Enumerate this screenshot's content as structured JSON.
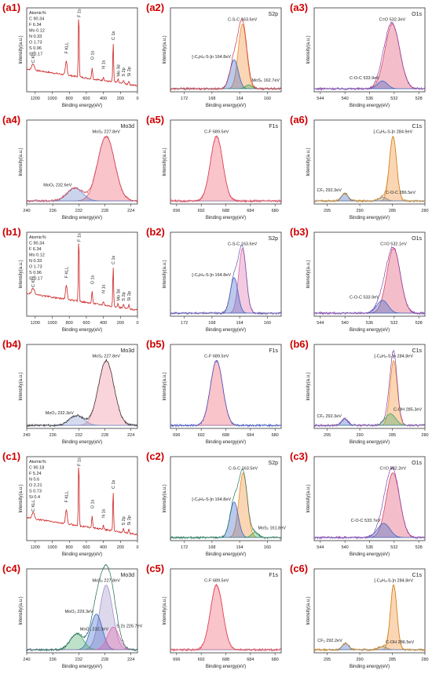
{
  "figure": {
    "panels": [
      {
        "id": "a1",
        "label": "(a1)",
        "tag": "",
        "kind": "survey",
        "atomic": [
          "Atomic%",
          "C 90.34",
          "F 6.34",
          "Mo 0.12",
          "N 0.33",
          "O 1.73",
          "S 0.96",
          "Si 0.17"
        ],
        "peaks": [
          {
            "x": 689,
            "label": "F 1s"
          },
          {
            "x": 285,
            "label": "C 1s"
          },
          {
            "x": 532,
            "label": "O 1s"
          },
          {
            "x": 400,
            "label": "N 1s"
          },
          {
            "x": 835,
            "label": "F KLL"
          },
          {
            "x": 1225,
            "label": "C KLL"
          },
          {
            "x": 228,
            "label": "Mo 3d"
          },
          {
            "x": 164,
            "label": "S 2p"
          },
          {
            "x": 102,
            "label": "Si 2p"
          }
        ],
        "xlim": [
          1300,
          0
        ],
        "xticks": [
          1200,
          1000,
          800,
          600,
          400,
          200,
          0
        ],
        "color": "#cc2222"
      },
      {
        "id": "a2",
        "label": "(a2)",
        "tag": "S2p",
        "kind": "hr",
        "xlim": [
          174,
          158
        ],
        "xticks": [
          172,
          168,
          164,
          160
        ],
        "components": [
          {
            "name": "C-S-C 163.6eV",
            "center": 163.6,
            "height": 1.0,
            "width": 0.6,
            "color": "#f08a2a"
          },
          {
            "name": "[-C6H4-S-]n 164.8eV",
            "center": 164.8,
            "height": 0.45,
            "width": 0.6,
            "color": "#3a66c8"
          },
          {
            "name": "MoS2 162.7eV",
            "center": 162.7,
            "height": 0.06,
            "width": 0.5,
            "color": "#33aa55"
          }
        ],
        "envelope": "#ddaa22",
        "data_color": "#cc3344"
      },
      {
        "id": "a3",
        "label": "(a3)",
        "tag": "O1s",
        "kind": "hr",
        "xlim": [
          545,
          527
        ],
        "xticks": [
          544,
          540,
          536,
          532,
          528
        ],
        "components": [
          {
            "name": "C=O 532.3eV",
            "center": 532.3,
            "height": 1.0,
            "width": 1.2,
            "color": "#dd4466"
          },
          {
            "name": "C-O-C 533.9eV",
            "center": 533.9,
            "height": 0.12,
            "width": 0.8,
            "color": "#3a66c8"
          }
        ],
        "envelope": "#aa55aa",
        "data_color": "#8844aa"
      },
      {
        "id": "a4",
        "label": "(a4)",
        "tag": "Mo3d",
        "kind": "hr",
        "xlim": [
          240,
          223
        ],
        "xticks": [
          240,
          236,
          232,
          228,
          224
        ],
        "components": [
          {
            "name": "MoS2 227.8eV",
            "center": 227.8,
            "height": 1.0,
            "width": 1.3,
            "color": "#ee5566"
          },
          {
            "name": "MoO3 232.6eV",
            "center": 232.6,
            "height": 0.2,
            "width": 1.2,
            "color": "#6688cc"
          }
        ],
        "envelope": "#cc4455",
        "data_color": "#cc4455"
      },
      {
        "id": "a5",
        "label": "(a5)",
        "tag": "F1s",
        "kind": "hr",
        "xlim": [
          697,
          679
        ],
        "xticks": [
          696,
          692,
          688,
          684,
          680
        ],
        "components": [
          {
            "name": "C-F 689.5eV",
            "center": 689.5,
            "height": 1.0,
            "width": 1.0,
            "color": "#ee5566"
          }
        ],
        "envelope": "#dd4455",
        "data_color": "#dd4455"
      },
      {
        "id": "a6",
        "label": "(a6)",
        "tag": "C1s",
        "kind": "hr",
        "xlim": [
          297,
          280
        ],
        "xticks": [
          295,
          290,
          285,
          280
        ],
        "components": [
          {
            "name": "[-C6H4-S-]n 284.9eV",
            "center": 284.9,
            "height": 1.0,
            "width": 0.55,
            "color": "#f08a2a"
          },
          {
            "name": "CF2 292.3eV",
            "center": 292.3,
            "height": 0.12,
            "width": 0.5,
            "color": "#3a66c8"
          },
          {
            "name": "C-O-C 286.5eV",
            "center": 286.5,
            "height": 0.06,
            "width": 0.6,
            "color": "#888888"
          }
        ],
        "envelope": "#ddbb22",
        "data_color": "#cc8822"
      },
      {
        "id": "b1",
        "label": "(b1)",
        "tag": "",
        "kind": "survey",
        "atomic": [
          "Atomic%",
          "C 90.34",
          "F 6.34",
          "Mo 0.12",
          "N 0.33",
          "O 1.73",
          "S 0.96",
          "Si 0.17"
        ],
        "peaks": [
          {
            "x": 689,
            "label": "F 1s"
          },
          {
            "x": 285,
            "label": "C 1s"
          },
          {
            "x": 532,
            "label": "O 1s"
          },
          {
            "x": 400,
            "label": "N 1s"
          },
          {
            "x": 835,
            "label": "F KLL"
          },
          {
            "x": 1225,
            "label": "C KLL"
          },
          {
            "x": 228,
            "label": "Mo 3d"
          },
          {
            "x": 164,
            "label": "S 2p"
          },
          {
            "x": 102,
            "label": "Si 2p"
          }
        ],
        "xlim": [
          1300,
          0
        ],
        "xticks": [
          1200,
          1000,
          800,
          600,
          400,
          200,
          0
        ],
        "color": "#cc2222"
      },
      {
        "id": "b2",
        "label": "(b2)",
        "tag": "S2p",
        "kind": "hr",
        "xlim": [
          174,
          158
        ],
        "xticks": [
          172,
          168,
          164,
          160
        ],
        "components": [
          {
            "name": "C-S-C 163.6eV",
            "center": 163.6,
            "height": 1.0,
            "width": 0.55,
            "color": "#dd66aa"
          },
          {
            "name": "[-C6H4-S-]n 164.8eV",
            "center": 164.8,
            "height": 0.55,
            "width": 0.55,
            "color": "#3a66c8"
          }
        ],
        "envelope": "#6655aa",
        "data_color": "#6655aa"
      },
      {
        "id": "b3",
        "label": "(b3)",
        "tag": "O1s",
        "kind": "hr",
        "xlim": [
          545,
          527
        ],
        "xticks": [
          544,
          540,
          536,
          532,
          528
        ],
        "components": [
          {
            "name": "C=O 532.1eV",
            "center": 532.1,
            "height": 1.0,
            "width": 1.1,
            "color": "#dd4466"
          },
          {
            "name": "C-O-C 533.9eV",
            "center": 533.9,
            "height": 0.2,
            "width": 0.9,
            "color": "#3a66c8"
          }
        ],
        "envelope": "#aa55aa",
        "data_color": "#8844aa"
      },
      {
        "id": "b4",
        "label": "(b4)",
        "tag": "Mo3d",
        "kind": "hr",
        "xlim": [
          240,
          223
        ],
        "xticks": [
          240,
          236,
          232,
          228,
          224
        ],
        "components": [
          {
            "name": "MoS2 227.8eV",
            "center": 227.8,
            "height": 1.0,
            "width": 1.2,
            "color": "#ee8899"
          },
          {
            "name": "MoO3 232.3eV",
            "center": 232.3,
            "height": 0.15,
            "width": 1.1,
            "color": "#8899cc"
          }
        ],
        "envelope": "#334488",
        "data_color": "#333333"
      },
      {
        "id": "b5",
        "label": "(b5)",
        "tag": "F1s",
        "kind": "hr",
        "xlim": [
          697,
          679
        ],
        "xticks": [
          696,
          692,
          688,
          684,
          680
        ],
        "components": [
          {
            "name": "C-F 689.5eV",
            "center": 689.5,
            "height": 1.0,
            "width": 1.0,
            "color": "#ee5566"
          }
        ],
        "envelope": "#3355cc",
        "data_color": "#3355cc"
      },
      {
        "id": "b6",
        "label": "(b6)",
        "tag": "C1s",
        "kind": "hr",
        "xlim": [
          297,
          280
        ],
        "xticks": [
          295,
          290,
          285,
          280
        ],
        "components": [
          {
            "name": "[-C6H4-S-]n 284.8eV",
            "center": 284.8,
            "height": 1.0,
            "width": 0.55,
            "color": "#f08a2a"
          },
          {
            "name": "CF2 292.3eV",
            "center": 292.3,
            "height": 0.1,
            "width": 0.5,
            "color": "#3a66c8"
          },
          {
            "name": "C-OH 285.3eV",
            "center": 285.3,
            "height": 0.18,
            "width": 0.8,
            "color": "#44aa66"
          }
        ],
        "envelope": "#ddbb22",
        "data_color": "#8844aa"
      },
      {
        "id": "c1",
        "label": "(c1)",
        "tag": "",
        "kind": "survey",
        "atomic": [
          "Atomic%",
          "C 90.18",
          "F 5.24",
          "N 0.6",
          "O 2.21",
          "S 0.73",
          "Si 0.4"
        ],
        "peaks": [
          {
            "x": 689,
            "label": "F 1s"
          },
          {
            "x": 285,
            "label": "C 1s"
          },
          {
            "x": 532,
            "label": "O 1s"
          },
          {
            "x": 400,
            "label": "N 1s"
          },
          {
            "x": 835,
            "label": "F KLL"
          },
          {
            "x": 1225,
            "label": "C KLL"
          },
          {
            "x": 164,
            "label": "S 2p"
          },
          {
            "x": 102,
            "label": "Si 2p"
          }
        ],
        "xlim": [
          1300,
          0
        ],
        "xticks": [
          1200,
          1000,
          800,
          600,
          400,
          200,
          0
        ],
        "color": "#cc2222"
      },
      {
        "id": "c2",
        "label": "(c2)",
        "tag": "S2p",
        "kind": "hr",
        "xlim": [
          174,
          158
        ],
        "xticks": [
          172,
          168,
          164,
          160
        ],
        "components": [
          {
            "name": "C-S-C 163.5eV",
            "center": 163.5,
            "height": 1.0,
            "width": 0.6,
            "color": "#f08a2a"
          },
          {
            "name": "[-C6H4-S-]n 164.8eV",
            "center": 164.8,
            "height": 0.55,
            "width": 0.6,
            "color": "#3a66c8"
          },
          {
            "name": "MoS2 161.8eV",
            "center": 161.8,
            "height": 0.08,
            "width": 0.5,
            "color": "#33aa55"
          }
        ],
        "envelope": "#ddaa22",
        "data_color": "#2d7a5a"
      },
      {
        "id": "c3",
        "label": "(c3)",
        "tag": "O1s",
        "kind": "hr",
        "xlim": [
          545,
          527
        ],
        "xticks": [
          544,
          540,
          536,
          532,
          528
        ],
        "components": [
          {
            "name": "C=O 532.2eV",
            "center": 532.2,
            "height": 1.0,
            "width": 1.1,
            "color": "#dd4466"
          },
          {
            "name": "C-O-C 533.7eV",
            "center": 533.7,
            "height": 0.22,
            "width": 1.0,
            "color": "#3a66c8"
          }
        ],
        "envelope": "#aa55aa",
        "data_color": "#8844aa"
      },
      {
        "id": "c4",
        "label": "(c4)",
        "tag": "Mo3d",
        "kind": "hr",
        "xlim": [
          240,
          223
        ],
        "xticks": [
          240,
          236,
          232,
          228,
          224
        ],
        "components": [
          {
            "name": "MoS2 227.8eV",
            "center": 227.8,
            "height": 1.0,
            "width": 1.0,
            "color": "#a090c8"
          },
          {
            "name": "MoO2 229.3eV",
            "center": 229.3,
            "height": 0.55,
            "width": 0.9,
            "color": "#3a66c8"
          },
          {
            "name": "MoO3 232.3eV",
            "center": 232.3,
            "height": 0.25,
            "width": 1.0,
            "color": "#44aa66"
          },
          {
            "name": "S 2s 226.7eV",
            "center": 226.7,
            "height": 0.35,
            "width": 0.9,
            "color": "#dd66aa"
          }
        ],
        "envelope": "#333388",
        "data_color": "#226655"
      },
      {
        "id": "c5",
        "label": "(c5)",
        "tag": "F1s",
        "kind": "hr",
        "xlim": [
          697,
          679
        ],
        "xticks": [
          696,
          692,
          688,
          684,
          680
        ],
        "components": [
          {
            "name": "C-F 689.5eV",
            "center": 689.5,
            "height": 1.0,
            "width": 1.0,
            "color": "#ee5566"
          }
        ],
        "envelope": "#dd4455",
        "data_color": "#dd4455"
      },
      {
        "id": "c6",
        "label": "(c6)",
        "tag": "C1s",
        "kind": "hr",
        "xlim": [
          297,
          280
        ],
        "xticks": [
          295,
          290,
          285,
          280
        ],
        "components": [
          {
            "name": "[-C6H4-S-]n 284.8eV",
            "center": 284.8,
            "height": 1.0,
            "width": 0.5,
            "color": "#f08a2a"
          },
          {
            "name": "CF2 292.2eV",
            "center": 292.2,
            "height": 0.1,
            "width": 0.5,
            "color": "#3a66c8"
          },
          {
            "name": "C-OH 286.5eV",
            "center": 286.5,
            "height": 0.05,
            "width": 0.6,
            "color": "#888888"
          }
        ],
        "envelope": "#ddbb22",
        "data_color": "#cc8822"
      }
    ],
    "axis_labels": {
      "x": "Binding energy(eV)",
      "y": "Intensity(a.u.)"
    },
    "label_color": "#cc0000"
  },
  "chart_data": [
    {
      "type": "line",
      "panel": "a1",
      "title": "",
      "xlabel": "Binding energy(eV)",
      "ylabel": "Intensity(a.u.)",
      "xlim": [
        1300,
        0
      ],
      "series": [
        {
          "values": "XPS survey spectrum"
        }
      ]
    },
    {
      "type": "line",
      "panel": "a2",
      "title": "S2p",
      "xlabel": "Binding energy(eV)",
      "ylabel": "Intensity(a.u.)",
      "xlim": [
        174,
        158
      ],
      "peaks_eV": [
        163.6,
        164.8,
        162.7
      ]
    },
    {
      "type": "line",
      "panel": "a3",
      "title": "O1s",
      "xlabel": "Binding energy(eV)",
      "ylabel": "Intensity(a.u.)",
      "xlim": [
        545,
        527
      ],
      "peaks_eV": [
        532.3,
        533.9
      ]
    },
    {
      "type": "line",
      "panel": "a4",
      "title": "Mo3d",
      "xlabel": "Binding energy(eV)",
      "ylabel": "Intensity(a.u.)",
      "xlim": [
        240,
        223
      ],
      "peaks_eV": [
        227.8,
        232.6
      ]
    },
    {
      "type": "line",
      "panel": "a5",
      "title": "F1s",
      "xlabel": "Binding energy(eV)",
      "ylabel": "Intensity(a.u.)",
      "xlim": [
        697,
        679
      ],
      "peaks_eV": [
        689.5
      ]
    },
    {
      "type": "line",
      "panel": "a6",
      "title": "C1s",
      "xlabel": "Binding energy(eV)",
      "ylabel": "Intensity(a.u.)",
      "xlim": [
        297,
        280
      ],
      "peaks_eV": [
        284.9,
        292.3,
        286.5
      ]
    },
    {
      "type": "line",
      "panel": "b1",
      "title": "",
      "xlabel": "Binding energy(eV)",
      "ylabel": "Intensity(a.u.)",
      "xlim": [
        1300,
        0
      ]
    },
    {
      "type": "line",
      "panel": "b2",
      "title": "S2p",
      "xlabel": "Binding energy(eV)",
      "ylabel": "Intensity(a.u.)",
      "xlim": [
        174,
        158
      ],
      "peaks_eV": [
        163.6,
        164.8
      ]
    },
    {
      "type": "line",
      "panel": "b3",
      "title": "O1s",
      "xlabel": "Binding energy(eV)",
      "ylabel": "Intensity(a.u.)",
      "xlim": [
        545,
        527
      ],
      "peaks_eV": [
        532.1,
        533.9
      ]
    },
    {
      "type": "line",
      "panel": "b4",
      "title": "Mo3d",
      "xlabel": "Binding energy(eV)",
      "ylabel": "Intensity(a.u.)",
      "xlim": [
        240,
        223
      ],
      "peaks_eV": [
        227.8,
        232.3
      ]
    },
    {
      "type": "line",
      "panel": "b5",
      "title": "F1s",
      "xlabel": "Binding energy(eV)",
      "ylabel": "Intensity(a.u.)",
      "xlim": [
        697,
        679
      ],
      "peaks_eV": [
        689.5
      ]
    },
    {
      "type": "line",
      "panel": "b6",
      "title": "C1s",
      "xlabel": "Binding energy(eV)",
      "ylabel": "Intensity(a.u.)",
      "xlim": [
        297,
        280
      ],
      "peaks_eV": [
        284.8,
        292.3,
        285.3
      ]
    },
    {
      "type": "line",
      "panel": "c1",
      "title": "",
      "xlabel": "Binding energy(eV)",
      "ylabel": "Intensity(a.u.)",
      "xlim": [
        1300,
        0
      ]
    },
    {
      "type": "line",
      "panel": "c2",
      "title": "S2p",
      "xlabel": "Binding energy(eV)",
      "ylabel": "Intensity(a.u.)",
      "xlim": [
        174,
        158
      ],
      "peaks_eV": [
        163.5,
        164.8,
        161.8
      ]
    },
    {
      "type": "line",
      "panel": "c3",
      "title": "O1s",
      "xlabel": "Binding energy(eV)",
      "ylabel": "Intensity(a.u.)",
      "xlim": [
        545,
        527
      ],
      "peaks_eV": [
        532.2,
        533.7
      ]
    },
    {
      "type": "line",
      "panel": "c4",
      "title": "Mo3d",
      "xlabel": "Binding energy(eV)",
      "ylabel": "Intensity(a.u.)",
      "xlim": [
        240,
        223
      ],
      "peaks_eV": [
        227.8,
        229.3,
        232.3,
        226.7
      ]
    },
    {
      "type": "line",
      "panel": "c5",
      "title": "F1s",
      "xlabel": "Binding energy(eV)",
      "ylabel": "Intensity(a.u.)",
      "xlim": [
        697,
        679
      ],
      "peaks_eV": [
        689.5
      ]
    },
    {
      "type": "line",
      "panel": "c6",
      "title": "C1s",
      "xlabel": "Binding energy(eV)",
      "ylabel": "Intensity(a.u.)",
      "xlim": [
        297,
        280
      ],
      "peaks_eV": [
        284.8,
        292.2,
        286.5
      ]
    }
  ]
}
